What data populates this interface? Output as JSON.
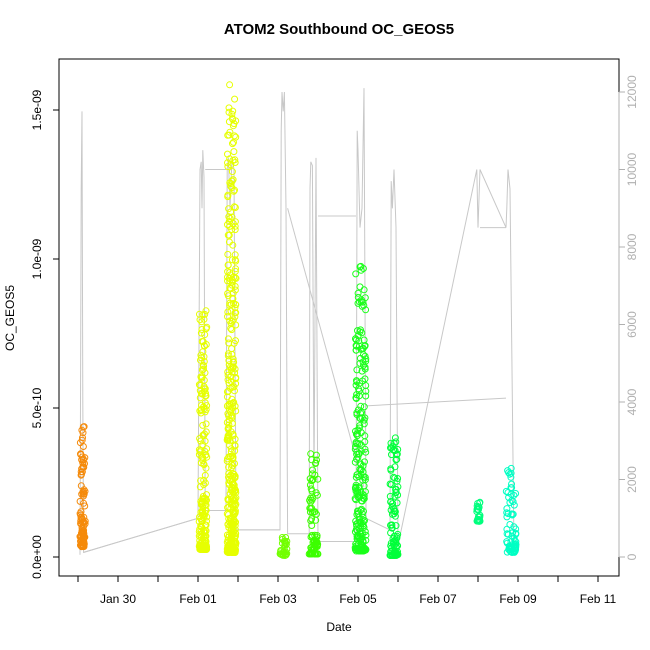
{
  "chart_data": {
    "type": "scatter",
    "title": "ATOM2 Southbound OC_GEOS5",
    "xlabel": "Date",
    "ylabel": "OC_GEOS5",
    "x_ticks": [
      "Jan 30",
      "Feb 01",
      "Feb 03",
      "Feb 05",
      "Feb 07",
      "Feb 09",
      "Feb 11"
    ],
    "y_ticks": [
      "0.0e+00",
      "5.0e-10",
      "1.0e-09",
      "1.5e-09"
    ],
    "y2_ticks": [
      "0",
      "2000",
      "4000",
      "6000",
      "8000",
      "10000",
      "12000"
    ],
    "xlim_days": [
      28.35,
      42.35
    ],
    "ylim": [
      -1.5e-11,
      1.66e-09
    ],
    "y2lim": [
      -200,
      12400
    ],
    "grid": false,
    "series": [
      {
        "color": "#f58a0a",
        "x_range": [
          29.05,
          29.18
        ],
        "y_range": [
          3.5e-11,
          4.4e-10
        ]
      },
      {
        "color": "#e6ff00",
        "x_range": [
          32.03,
          32.22
        ],
        "y_range": [
          2.5e-11,
          8.3e-10
        ]
      },
      {
        "color": "#e6ff00",
        "x_range": [
          32.73,
          32.95
        ],
        "y_range": [
          1.5e-11,
          1.6e-09
        ]
      },
      {
        "color": "#72ff00",
        "x_range": [
          34.05,
          34.22
        ],
        "y_range": [
          5e-12,
          8e-11
        ]
      },
      {
        "color": "#3cff00",
        "x_range": [
          34.78,
          35.0
        ],
        "y_range": [
          1e-11,
          3.5e-10
        ]
      },
      {
        "color": "#1aff1a",
        "x_range": [
          35.93,
          36.2
        ],
        "y_range": [
          2e-11,
          9.8e-10
        ]
      },
      {
        "color": "#00ff3a",
        "x_range": [
          36.8,
          37.0
        ],
        "y_range": [
          5e-12,
          4e-10
        ]
      },
      {
        "color": "#00ff7e",
        "x_range": [
          38.97,
          39.05
        ],
        "y_range": [
          1.2e-10,
          1.85e-10
        ]
      },
      {
        "color": "#00ffc4",
        "x_range": [
          39.7,
          39.95
        ],
        "y_range": [
          1.5e-11,
          3e-10
        ]
      }
    ],
    "altitude_line": {
      "color": "#c8c8c8",
      "points": [
        [
          29.05,
          60
        ],
        [
          29.08,
          9500
        ],
        [
          29.1,
          11500
        ],
        [
          29.12,
          4000
        ],
        [
          29.14,
          120
        ],
        [
          32.0,
          1000
        ],
        [
          32.05,
          10000
        ],
        [
          32.08,
          10200
        ],
        [
          32.1,
          9000
        ],
        [
          32.12,
          10500
        ],
        [
          32.15,
          9800
        ],
        [
          32.18,
          1200
        ],
        [
          32.7,
          1200
        ],
        [
          32.73,
          10000
        ],
        [
          32.76,
          10300
        ],
        [
          32.8,
          9000
        ],
        [
          32.85,
          10300
        ],
        [
          32.9,
          10000
        ],
        [
          32.95,
          700
        ],
        [
          34.05,
          700
        ],
        [
          34.08,
          11000
        ],
        [
          34.1,
          12000
        ],
        [
          34.13,
          11500
        ],
        [
          34.16,
          12000
        ],
        [
          34.2,
          9000
        ],
        [
          34.24,
          600
        ],
        [
          34.78,
          600
        ],
        [
          34.8,
          9500
        ],
        [
          34.82,
          10200
        ],
        [
          34.86,
          10100
        ],
        [
          34.9,
          2000
        ],
        [
          34.95,
          10300
        ],
        [
          35.0,
          400
        ],
        [
          35.95,
          400
        ],
        [
          35.98,
          11000
        ],
        [
          36.0,
          10500
        ],
        [
          36.05,
          8500
        ],
        [
          36.1,
          9000
        ],
        [
          36.15,
          12100
        ],
        [
          36.2,
          1000
        ],
        [
          36.8,
          700
        ],
        [
          36.83,
          9700
        ],
        [
          36.86,
          9000
        ],
        [
          36.9,
          10000
        ],
        [
          36.95,
          8500
        ],
        [
          37.0,
          300
        ],
        [
          38.97,
          10000
        ],
        [
          39.0,
          8500
        ],
        [
          39.05,
          10000
        ],
        [
          39.7,
          8500
        ],
        [
          39.72,
          9000
        ],
        [
          39.75,
          10000
        ],
        [
          39.8,
          9500
        ],
        [
          39.9,
          200
        ]
      ],
      "connectors": [
        [
          [
            29.14,
            120
          ],
          [
            32.0,
            1000
          ]
        ],
        [
          [
            32.18,
            10000
          ],
          [
            32.7,
            10000
          ]
        ],
        [
          [
            32.95,
            700
          ],
          [
            34.05,
            700
          ]
        ],
        [
          [
            34.24,
            9000
          ],
          [
            36.15,
            1800
          ]
        ],
        [
          [
            35.0,
            8800
          ],
          [
            35.95,
            8800
          ]
        ],
        [
          [
            36.2,
            3900
          ],
          [
            39.7,
            4100
          ]
        ],
        [
          [
            39.05,
            8500
          ],
          [
            39.7,
            8500
          ]
        ]
      ]
    }
  }
}
